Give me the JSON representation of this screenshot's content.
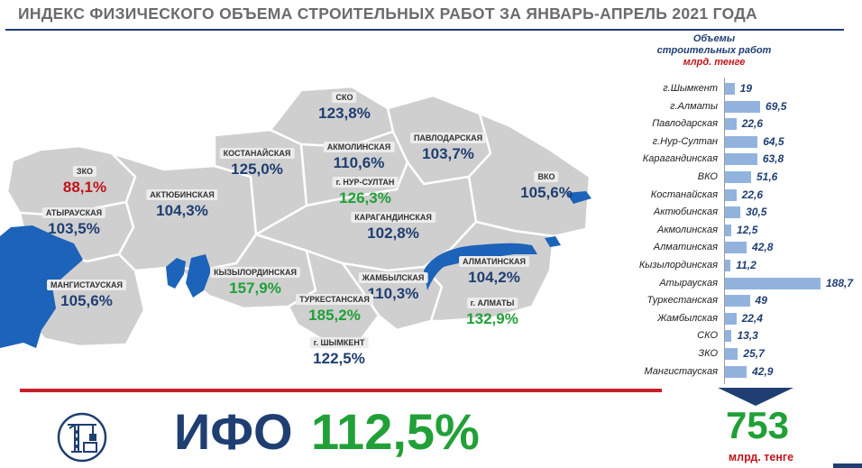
{
  "title": "ИНДЕКС ФИЗИЧЕСКОГО ОБЪЕМА СТРОИТЕЛЬНЫХ РАБОТ ЗА ЯНВАРЬ-АПРЕЛЬ 2021 ГОДА",
  "colors": {
    "navy": "#1f3e72",
    "green": "#21a038",
    "red": "#c0141a",
    "land": "#cfcfcf",
    "water": "#1c63b9",
    "bar": "#93b3df"
  },
  "map": {
    "regions": [
      {
        "name": "ЗКО",
        "value": "88,1%",
        "tone": "red"
      },
      {
        "name": "АТЫРАУСКАЯ",
        "value": "103,5%",
        "tone": "navy"
      },
      {
        "name": "МАНГИСТАУСКАЯ",
        "value": "105,6%",
        "tone": "navy"
      },
      {
        "name": "АКТЮБИНСКАЯ",
        "value": "104,3%",
        "tone": "navy"
      },
      {
        "name": "КОСТАНАЙСКАЯ",
        "value": "125,0%",
        "tone": "navy"
      },
      {
        "name": "СКО",
        "value": "123,8%",
        "tone": "navy"
      },
      {
        "name": "АКМОЛИНСКАЯ",
        "value": "110,6%",
        "tone": "navy"
      },
      {
        "name": "ПАВЛОДАРСКАЯ",
        "value": "103,7%",
        "tone": "navy"
      },
      {
        "name": "г. НУР-СУЛТАН",
        "value": "126,3%",
        "tone": "green"
      },
      {
        "name": "ВКО",
        "value": "105,6%",
        "tone": "navy"
      },
      {
        "name": "КАРАГАНДИНСКАЯ",
        "value": "102,8%",
        "tone": "navy"
      },
      {
        "name": "КЫЗЫЛОРДИНСКАЯ",
        "value": "157,9%",
        "tone": "green"
      },
      {
        "name": "ЖАМБЫЛСКАЯ",
        "value": "110,3%",
        "tone": "navy"
      },
      {
        "name": "АЛМАТИНСКАЯ",
        "value": "104,2%",
        "tone": "navy"
      },
      {
        "name": "ТУРКЕСТАНСКАЯ",
        "value": "185,2%",
        "tone": "green"
      },
      {
        "name": "г. АЛМАТЫ",
        "value": "132,9%",
        "tone": "green"
      },
      {
        "name": "г. ШЫМКЕНТ",
        "value": "122,5%",
        "tone": "navy"
      }
    ]
  },
  "volumes": {
    "heading": "Объемы\nстроительных работ",
    "unit": "млрд. тенге"
  },
  "chart_data": {
    "type": "bar",
    "orientation": "horizontal",
    "categories": [
      "г.Шымкент",
      "г.Алматы",
      "Павлодарская",
      "г.Нур-Султан",
      "Карагандинская",
      "ВКО",
      "Костанайская",
      "Актюбинская",
      "Акмолинская",
      "Алматинская",
      "Кызылординская",
      "Атырауская",
      "Туркестанская",
      "Жамбылская",
      "СКО",
      "ЗКО",
      "Мангистауская"
    ],
    "values": [
      19,
      69.5,
      22.6,
      64.5,
      63.8,
      51.6,
      22.6,
      30.5,
      12.5,
      42.8,
      11.2,
      188.7,
      49,
      22.4,
      13.3,
      25.7,
      42.9
    ],
    "labels": [
      "19",
      "69,5",
      "22,6",
      "64,5",
      "63,8",
      "51,6",
      "22,6",
      "30,5",
      "12,5",
      "42,8",
      "11,2",
      "188,7",
      "49",
      "22,4",
      "13,3",
      "25,7",
      "42,9"
    ],
    "title": "Объемы строительных работ",
    "ylabel": "млрд. тенге",
    "xlim": [
      0,
      188.7
    ]
  },
  "summary": {
    "ifo_label": "ИФО",
    "ifo_value": "112,5%",
    "total_value": "753",
    "total_unit": "млрд. тенге"
  },
  "icons": {
    "construction": "construction-crane-icon"
  }
}
